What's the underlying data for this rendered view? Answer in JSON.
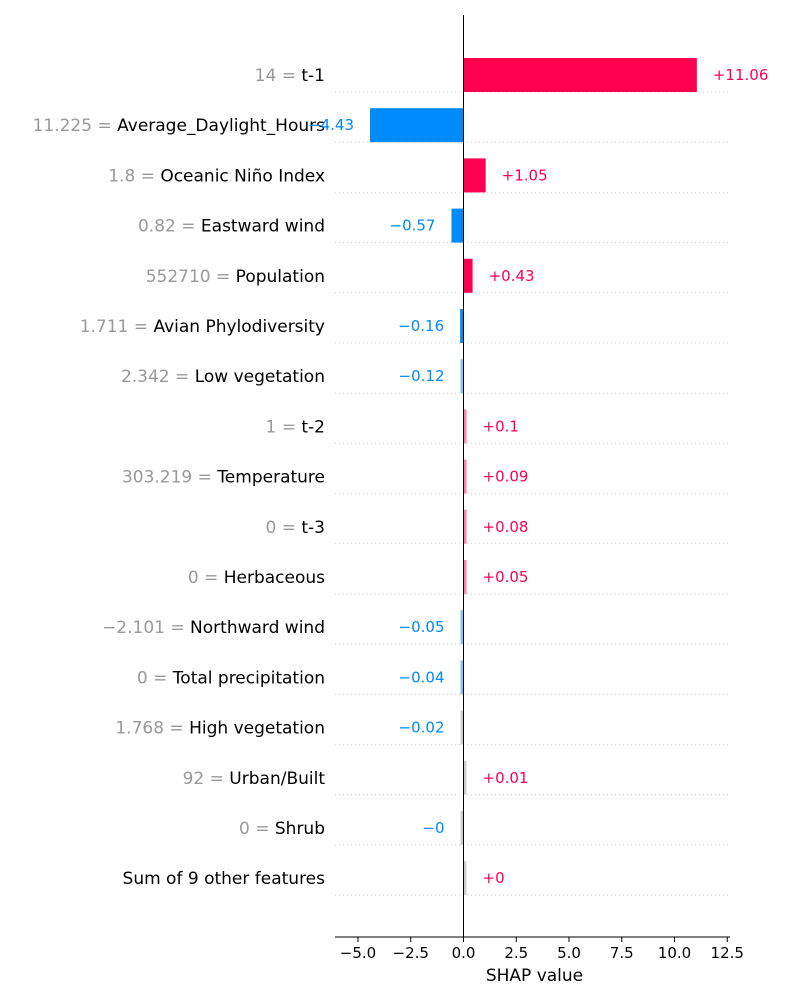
{
  "colors": {
    "positive": "#ff0051",
    "negative": "#008bfb",
    "feature_value": "#999999",
    "grid": "#cccccc",
    "axis": "#000000"
  },
  "chart_data": {
    "type": "bar",
    "orientation": "horizontal",
    "xlabel": "SHAP value",
    "xlim": [
      -6.0,
      12.6
    ],
    "xticks": [
      "−5.0",
      "−2.5",
      "0.0",
      "2.5",
      "5.0",
      "7.5",
      "10.0",
      "12.5"
    ],
    "xtick_values": [
      -5,
      -2.5,
      0,
      2.5,
      5,
      7.5,
      10,
      12.5
    ],
    "grid": "dotted horizontal row guides",
    "features": [
      {
        "value": "14",
        "name": "t-1",
        "shap": 11.06,
        "label": "+11.06"
      },
      {
        "value": "11.225",
        "name": "Average_Daylight_Hours",
        "shap": -4.43,
        "label": "−4.43"
      },
      {
        "value": "1.8",
        "name": "Oceanic Niño Index",
        "shap": 1.05,
        "label": "+1.05"
      },
      {
        "value": "0.82",
        "name": "Eastward wind",
        "shap": -0.57,
        "label": "−0.57"
      },
      {
        "value": "552710",
        "name": "Population",
        "shap": 0.43,
        "label": "+0.43"
      },
      {
        "value": "1.711",
        "name": "Avian Phylodiversity",
        "shap": -0.16,
        "label": "−0.16"
      },
      {
        "value": "2.342",
        "name": "Low vegetation",
        "shap": -0.12,
        "label": "−0.12"
      },
      {
        "value": "1",
        "name": "t-2",
        "shap": 0.1,
        "label": "+0.1"
      },
      {
        "value": "303.219",
        "name": "Temperature",
        "shap": 0.09,
        "label": "+0.09"
      },
      {
        "value": "0",
        "name": "t-3",
        "shap": 0.08,
        "label": "+0.08"
      },
      {
        "value": "0",
        "name": "Herbaceous",
        "shap": 0.05,
        "label": "+0.05"
      },
      {
        "value": "−2.101",
        "name": "Northward wind",
        "shap": -0.05,
        "label": "−0.05"
      },
      {
        "value": "0",
        "name": "Total precipitation",
        "shap": -0.04,
        "label": "−0.04"
      },
      {
        "value": "1.768",
        "name": "High vegetation",
        "shap": -0.02,
        "label": "−0.02"
      },
      {
        "value": "92",
        "name": "Urban/Built",
        "shap": 0.01,
        "label": "+0.01"
      },
      {
        "value": "0",
        "name": "Shrub",
        "shap": -0.001,
        "label": "−0"
      },
      {
        "value": "",
        "name": "Sum of 9 other features",
        "shap": 0.0,
        "label": "+0"
      }
    ]
  }
}
